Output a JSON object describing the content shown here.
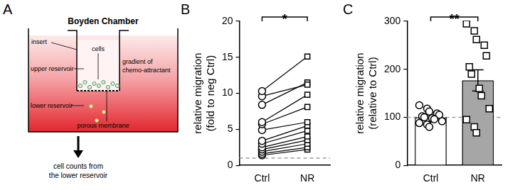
{
  "diagram": {
    "title": "A",
    "heading": "Boyden Chamber",
    "labels": {
      "insert": "insert",
      "cells": "cells",
      "upper": "upper reservoir",
      "lower": "lower reservoir",
      "membrane": "porous membrane",
      "gradient": [
        "gradient of",
        "chemo-attractant"
      ],
      "result": [
        "cell counts from",
        "the lower reservoir"
      ]
    }
  },
  "chart_data": [
    {
      "type": "paired",
      "title": "B",
      "ylabel": [
        "relative migration",
        "(fold to neg Ctrl)"
      ],
      "series": [
        {
          "name": "Ctrl",
          "marker": "circle",
          "color": "#000000",
          "values": [
            10.3,
            9.6,
            8.4,
            6.0,
            5.7,
            4.9,
            3.4,
            3.0,
            2.5,
            2.2,
            1.9,
            1.6,
            1.4
          ]
        },
        {
          "name": "NR",
          "marker": "square",
          "color": "#000000",
          "values": [
            15.1,
            11.2,
            11.5,
            9.8,
            8.1,
            6.0,
            5.5,
            4.8,
            4.0,
            3.5,
            3.0,
            2.5,
            2.2
          ]
        }
      ],
      "ylim": [
        0,
        20
      ],
      "yticks": [
        0,
        5,
        10,
        15,
        20
      ],
      "grid": false,
      "annotations": [
        {
          "type": "hline",
          "value": 1,
          "line_style": "dashed",
          "color": "#9e9e9e"
        },
        {
          "type": "bracket",
          "text": "*",
          "from": "Ctrl",
          "to": "NR"
        }
      ]
    },
    {
      "type": "bar",
      "title": "C",
      "ylabel": [
        "relative migration",
        "(relative to Ctrl)"
      ],
      "categories": [
        "Ctrl",
        "NR"
      ],
      "values": [
        100,
        177
      ],
      "errors": [
        10,
        22
      ],
      "colors": [
        "#ffffff",
        "#a6a6a6"
      ],
      "points": [
        {
          "marker": "circle",
          "values": [
            125,
            118,
            112,
            108,
            105,
            102,
            100,
            98,
            96,
            92,
            88,
            85,
            80
          ]
        },
        {
          "marker": "square",
          "values": [
            295,
            280,
            262,
            250,
            228,
            205,
            190,
            160,
            145,
            118,
            95,
            80,
            68
          ]
        }
      ],
      "ylim": [
        0,
        300
      ],
      "yticks": [
        0,
        100,
        200,
        300
      ],
      "grid": false,
      "annotations": [
        {
          "type": "hline",
          "value": 100,
          "line_style": "dashed",
          "color": "#9e9e9e"
        },
        {
          "type": "bracket",
          "text": "**",
          "from": "Ctrl",
          "to": "NR"
        }
      ]
    }
  ]
}
